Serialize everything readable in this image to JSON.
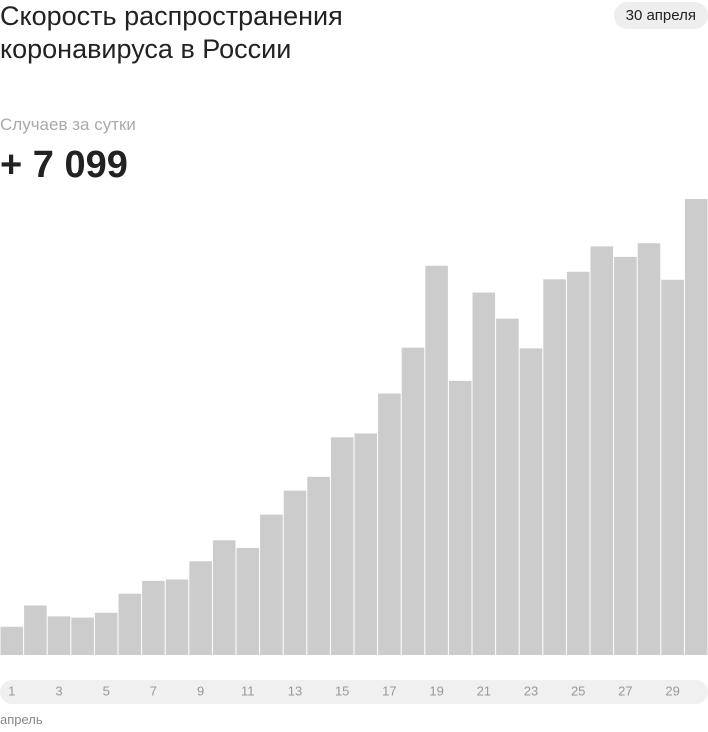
{
  "chart_data": {
    "type": "bar",
    "title": "Скорость распространения коронавируса в России",
    "date": "30 апреля",
    "subtitle": "Случаев за сутки",
    "headline": "+ 7 099",
    "x_label": "апрель",
    "color": "#cccccc",
    "categories": [
      "1",
      null,
      "3",
      null,
      "5",
      null,
      "7",
      null,
      "9",
      null,
      "11",
      null,
      "13",
      null,
      "15",
      null,
      "17",
      null,
      "19",
      null,
      "21",
      null,
      "23",
      null,
      "25",
      null,
      "27",
      null,
      "29",
      null
    ],
    "values": [
      440,
      771,
      601,
      582,
      658,
      954,
      1154,
      1175,
      1459,
      1786,
      1667,
      2186,
      2558,
      2774,
      3388,
      3448,
      4070,
      4785,
      6060,
      4268,
      5642,
      5236,
      4774,
      5849,
      5966,
      6361,
      6198,
      6411,
      5841,
      7099
    ]
  }
}
